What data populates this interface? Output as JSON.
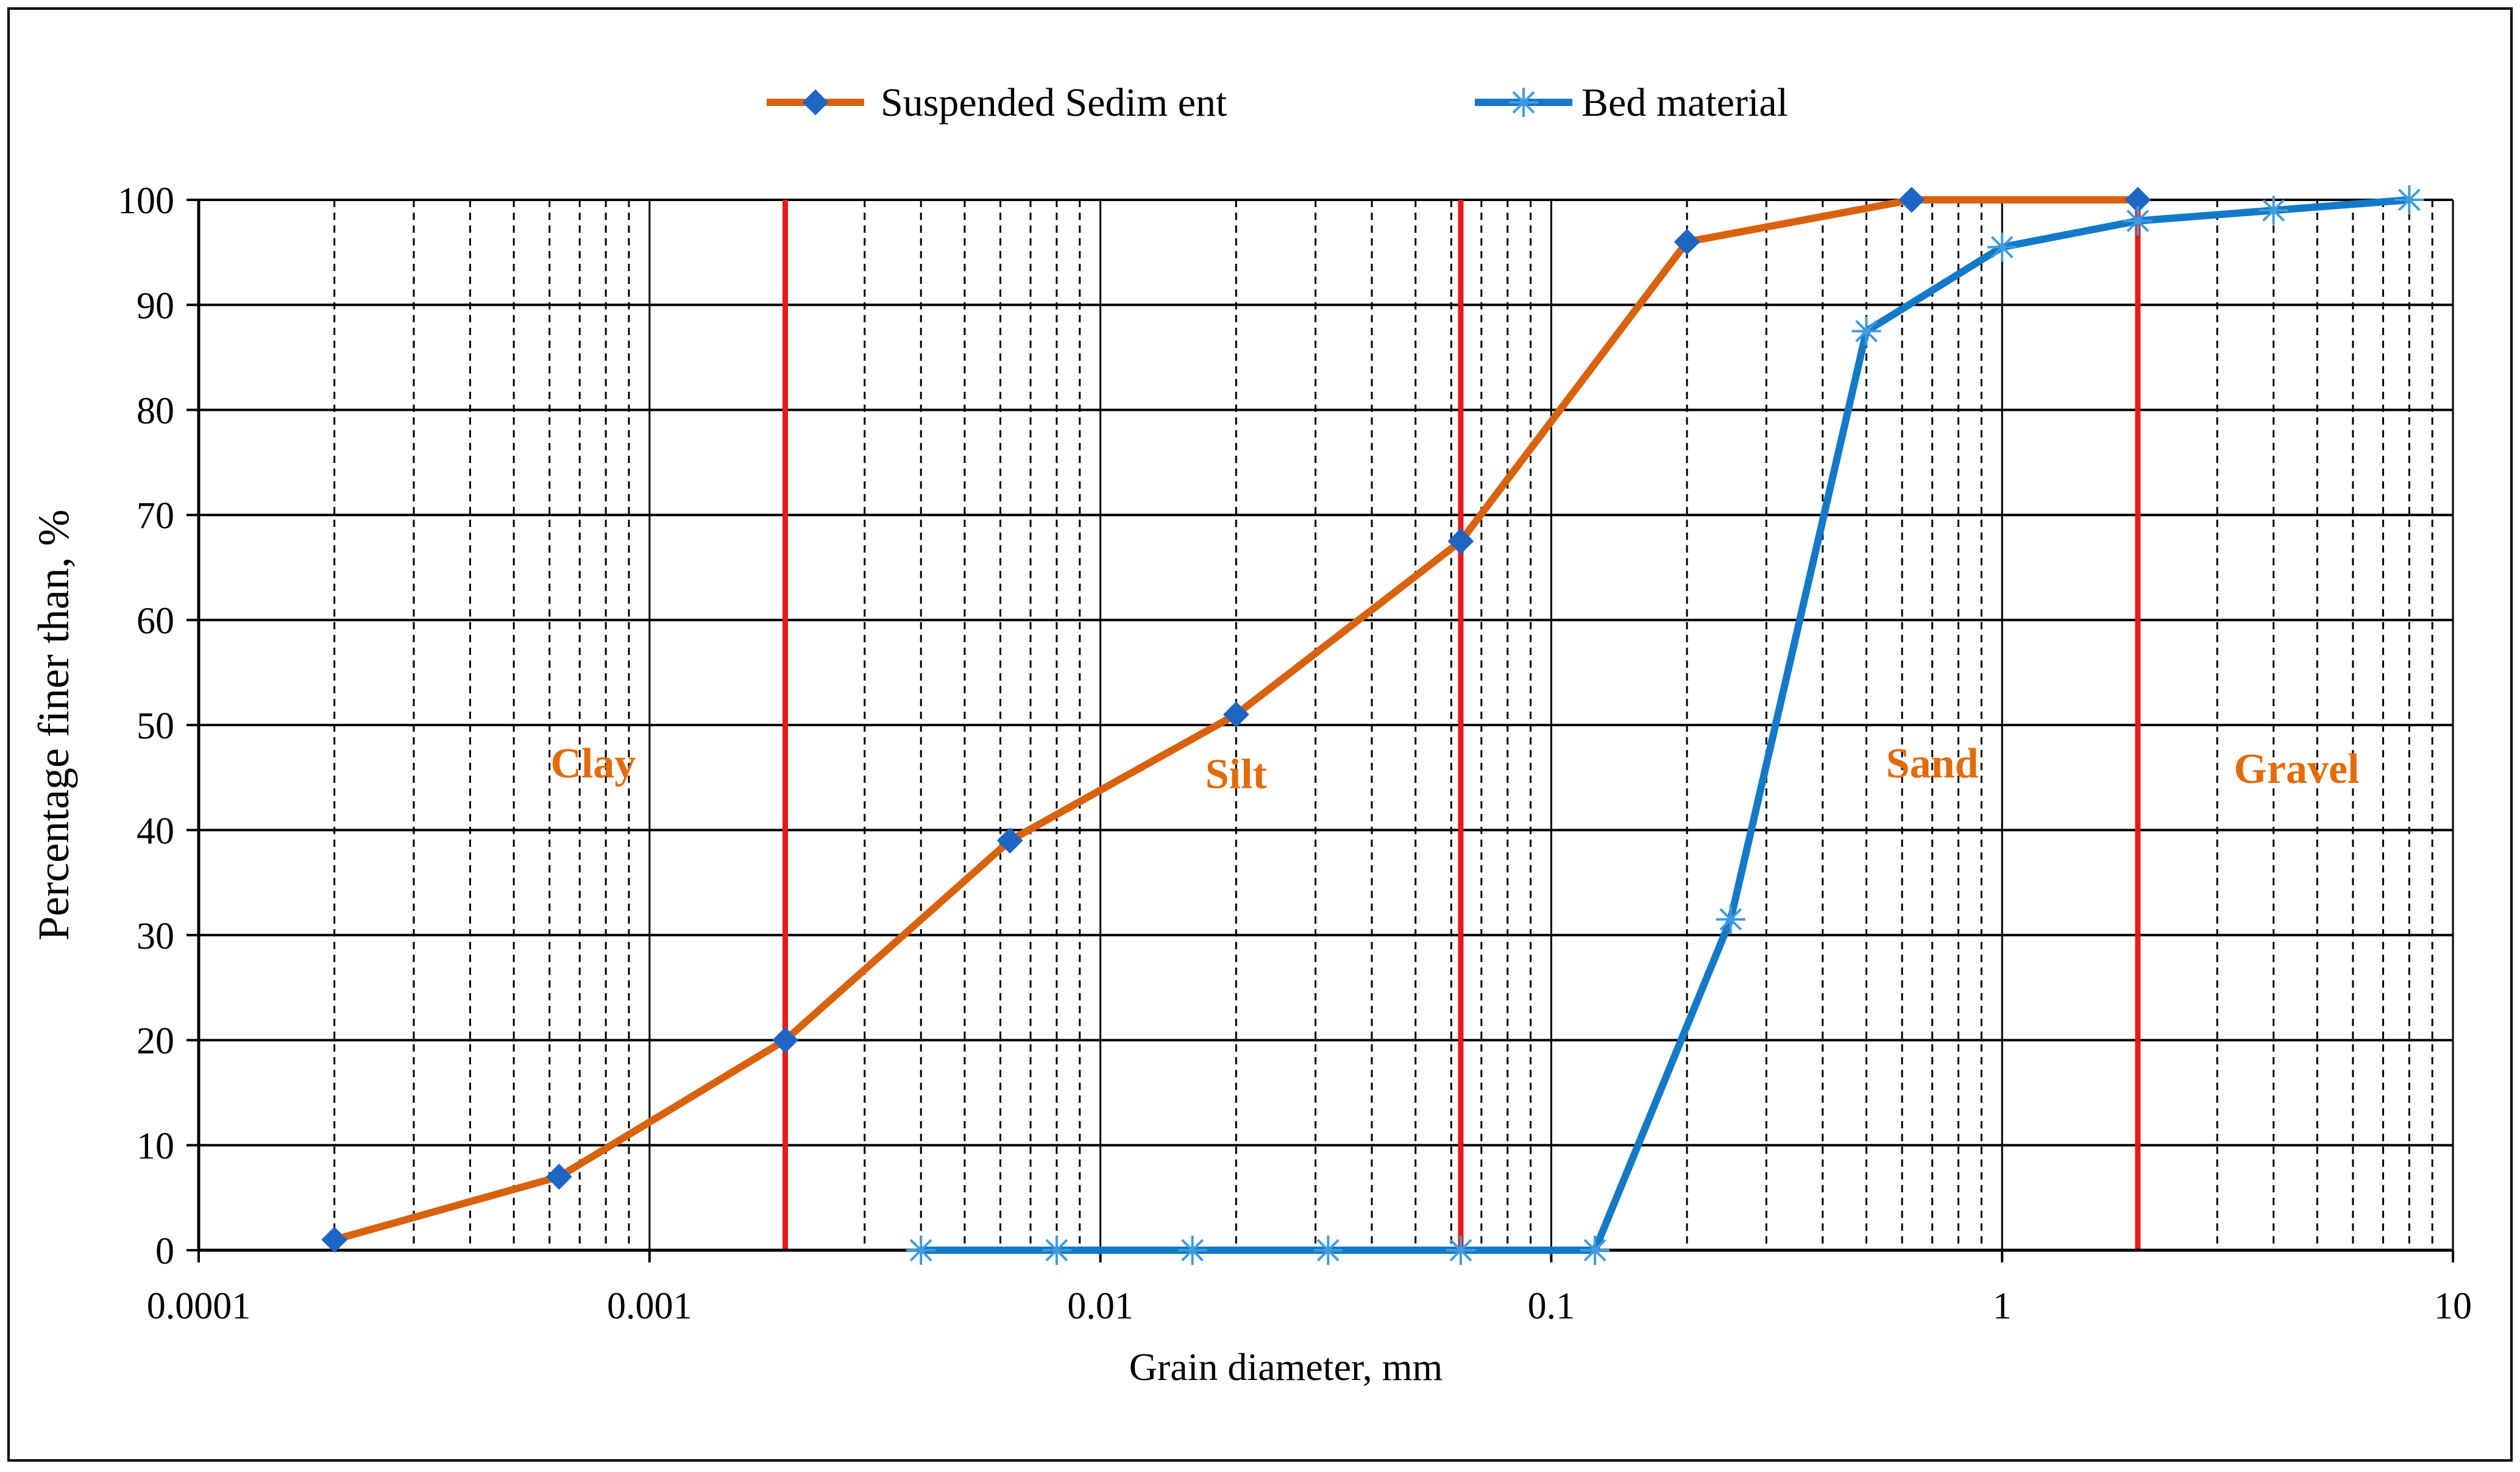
{
  "chart_data": {
    "type": "line",
    "x_scale": "log",
    "xlim": [
      0.0001,
      10
    ],
    "ylim": [
      0,
      100
    ],
    "xlabel": "Grain  diameter, mm",
    "ylabel": "Percentage finer than, %",
    "grid": true,
    "legend_position": "top",
    "x_tick_labels": [
      "0.0001",
      "0.001",
      "0.01",
      "0.1",
      "1",
      "10"
    ],
    "y_tick_labels": [
      "0",
      "10",
      "20",
      "30",
      "40",
      "50",
      "60",
      "70",
      "80",
      "90",
      "100"
    ],
    "series": [
      {
        "name": "Suspended Sedim ent",
        "color": "#D9620F",
        "marker": "diamond",
        "x": [
          0.0002,
          0.00063,
          0.002,
          0.0063,
          0.02,
          0.063,
          0.2,
          0.63,
          2
        ],
        "y": [
          1,
          7,
          20,
          39,
          51,
          67.5,
          96,
          100,
          100
        ]
      },
      {
        "name": "Bed material",
        "color": "#1479C8",
        "marker": "asterisk",
        "x": [
          0.004,
          0.008,
          0.016,
          0.032,
          0.063,
          0.125,
          0.25,
          0.5,
          1,
          2,
          4,
          8
        ],
        "y": [
          0,
          0,
          0,
          0,
          0,
          0,
          31.5,
          87.5,
          95.5,
          98,
          99,
          100
        ]
      }
    ],
    "reference_lines": {
      "color": "#E8191A",
      "x": [
        0.002,
        0.063,
        2
      ]
    },
    "zone_labels": [
      {
        "text": "Clay",
        "x": 0.00075,
        "y": 45
      },
      {
        "text": "Silt",
        "x": 0.02,
        "y": 44
      },
      {
        "text": "Sand",
        "x": 0.7,
        "y": 45
      },
      {
        "text": "Gravel",
        "x": 4.5,
        "y": 44.5
      }
    ],
    "zone_label_color": "#E26B0A"
  }
}
